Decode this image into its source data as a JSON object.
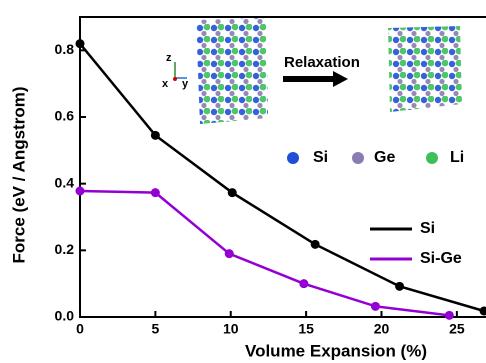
{
  "chart_data": {
    "type": "line",
    "xlabel": "Volume Expansion (%)",
    "ylabel": "Force (eV / Angstrom)",
    "xlim": [
      0,
      27
    ],
    "xticks": [
      0,
      5,
      10,
      15,
      20,
      25
    ],
    "ylim": [
      0,
      0.9
    ],
    "yticks": [
      {
        "value": 0,
        "label": "0.0"
      },
      0.2,
      0.4,
      0.6,
      0.8
    ],
    "series": [
      {
        "name": "Si",
        "color": "#000000",
        "x": [
          0,
          5.0,
          10.1,
          15.6,
          21.2,
          26.8
        ],
        "values": [
          0.82,
          0.545,
          0.373,
          0.218,
          0.092,
          0.018
        ]
      },
      {
        "name": "Si-Ge",
        "color": "#9400d3",
        "x": [
          0,
          5.0,
          9.9,
          14.85,
          19.6,
          24.5
        ],
        "values": [
          0.378,
          0.373,
          0.19,
          0.1,
          0.032,
          0.005
        ]
      }
    ],
    "inset": {
      "arrow_label": "Relaxation",
      "axes": [
        "z",
        "x",
        "y"
      ],
      "atoms": [
        {
          "label": "Si",
          "color": "#1f4fd6"
        },
        {
          "label": "Ge",
          "color": "#8a7cb0"
        },
        {
          "label": "Li",
          "color": "#3cc05a"
        }
      ]
    }
  }
}
